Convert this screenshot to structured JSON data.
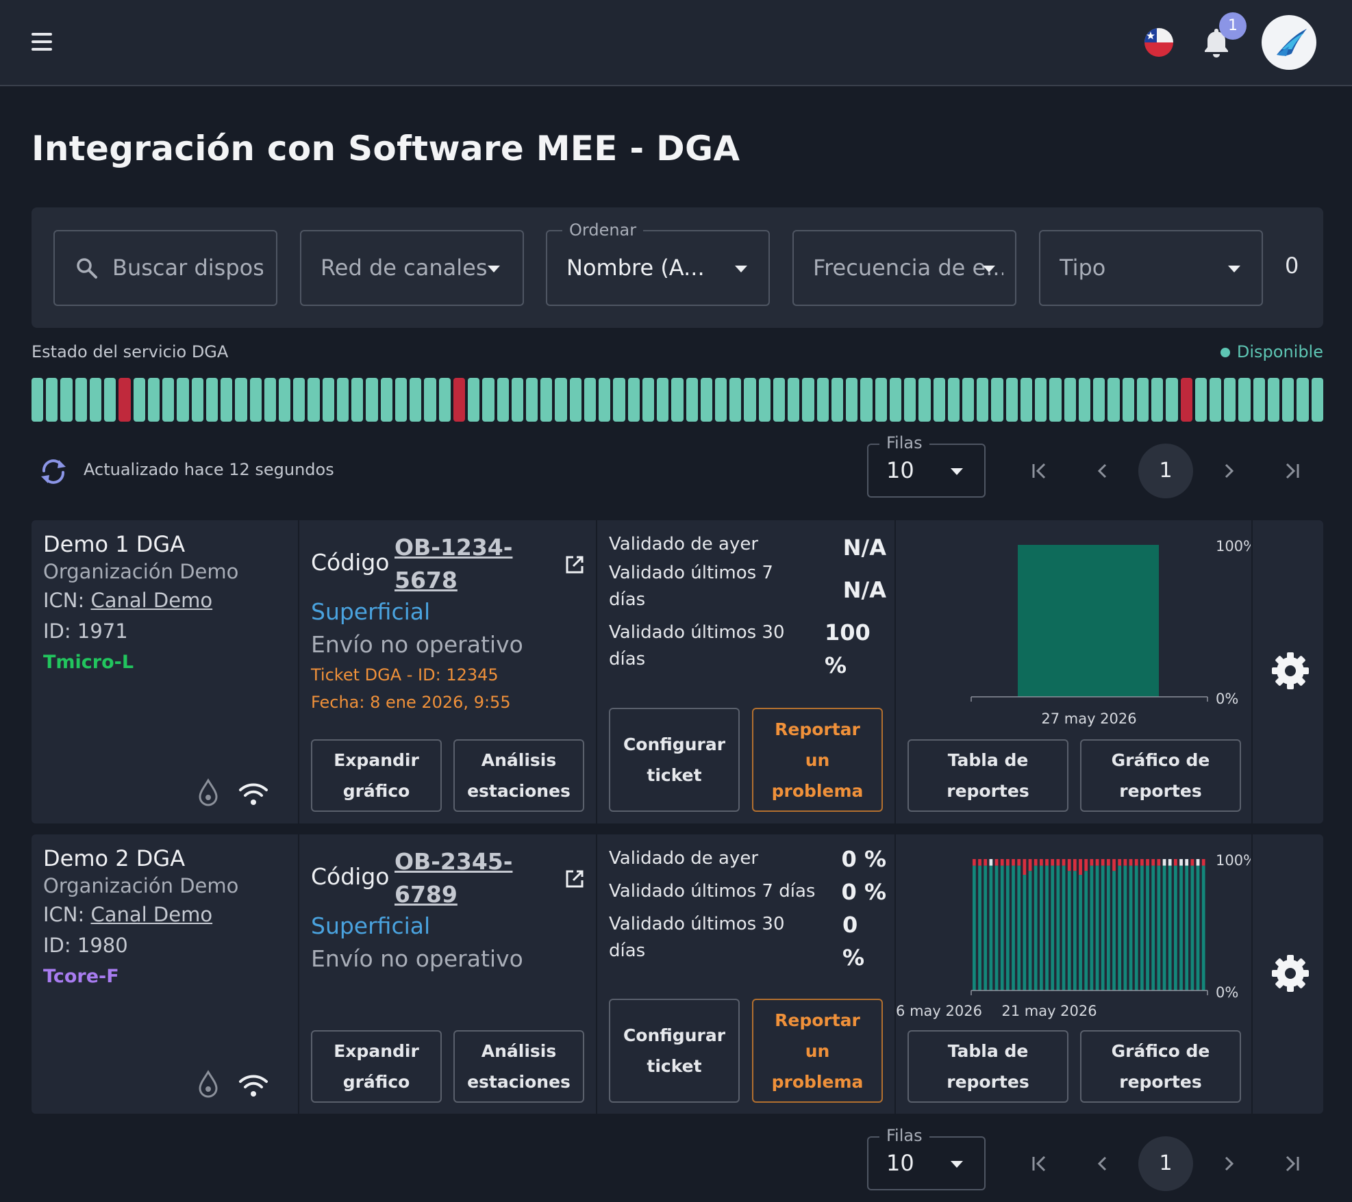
{
  "header": {
    "notification_count": "1",
    "flag": "chile-flag-icon"
  },
  "page": {
    "title": "Integración con Software MEE - DGA"
  },
  "filters": {
    "search_placeholder": "Buscar dispositivo",
    "search_display": "Buscar dispos",
    "network": "Red de canales",
    "sort_label": "Ordenar",
    "sort_value": "Nombre (A...",
    "frequency": "Frecuencia de e...",
    "type": "Tipo",
    "count": "0"
  },
  "service": {
    "label": "Estado del servicio DGA",
    "status": "Disponible",
    "uptime": [
      1,
      1,
      1,
      1,
      1,
      1,
      0,
      1,
      1,
      1,
      1,
      1,
      1,
      1,
      1,
      1,
      1,
      1,
      1,
      1,
      1,
      1,
      1,
      1,
      1,
      1,
      1,
      1,
      1,
      0,
      1,
      1,
      1,
      1,
      1,
      1,
      1,
      1,
      1,
      1,
      1,
      1,
      1,
      1,
      1,
      1,
      1,
      1,
      1,
      1,
      1,
      1,
      1,
      1,
      1,
      1,
      1,
      1,
      1,
      1,
      1,
      1,
      1,
      1,
      1,
      1,
      1,
      1,
      1,
      1,
      1,
      1,
      1,
      1,
      1,
      1,
      1,
      1,
      1,
      0,
      1,
      1,
      1,
      1,
      1,
      1,
      1,
      1,
      1
    ]
  },
  "toolbar": {
    "updated": "Actualizado hace 12 segundos"
  },
  "pagination": {
    "rows_label": "Filas",
    "rows_value": "10",
    "current_page": "1"
  },
  "devices": [
    {
      "name": "Demo 1 DGA",
      "org": "Organización Demo",
      "icn_label": "ICN:",
      "icn_value": "Canal Demo",
      "id": "ID: 1971",
      "type": "Tmicro-L",
      "type_color": "#22c55e",
      "codigo_label": "Código",
      "codigo_l1": "OB-1234-",
      "codigo_l2": "5678",
      "level": "Superficial",
      "envio": "Envío no operativo",
      "ticket": "Ticket DGA - ID: 12345",
      "fecha": "Fecha: 8 ene 2026, 9:55",
      "btn_expand": "Expandir gráfico",
      "btn_analysis": "Análisis estaciones",
      "v1_label": "Validado de ayer",
      "v1_value": "N/A",
      "v2_label": "Validado últimos 7 días",
      "v2_value": "N/A",
      "v3_label": "Validado últimos 30 días",
      "v3_value": "100 %",
      "btn_config": "Configurar ticket",
      "btn_report": "Reportar un problema",
      "btn_table": "Tabla de reportes",
      "btn_chart": "Gráfico de reportes"
    },
    {
      "name": "Demo 2 DGA",
      "org": "Organización Demo",
      "icn_label": "ICN:",
      "icn_value": "Canal Demo",
      "id": "ID: 1980",
      "type": "Tcore-F",
      "type_color": "#a87cf0",
      "codigo_label": "Código",
      "codigo_l1": "OB-2345-",
      "codigo_l2": "6789",
      "level": "Superficial",
      "envio": "Envío no operativo",
      "ticket": "",
      "fecha": "",
      "btn_expand": "Expandir gráfico",
      "btn_analysis": "Análisis estaciones",
      "v1_label": "Validado de ayer",
      "v1_value": "0 %",
      "v2_label": "Validado últimos 7 días",
      "v2_value": "0 %",
      "v3_label": "Validado últimos 30 días",
      "v3_value": "0 %",
      "btn_config": "Configurar ticket",
      "btn_report": "Reportar un problema",
      "btn_table": "Tabla de reportes",
      "btn_chart": "Gráfico de reportes"
    }
  ],
  "chart_data": [
    {
      "type": "bar",
      "categories": [
        "27 may 2026"
      ],
      "values": [
        100
      ],
      "ylim": [
        0,
        100
      ],
      "ytick_labels": [
        "100%",
        "0%"
      ],
      "colors": {
        "ok": "#0e6b5a"
      }
    },
    {
      "type": "bar",
      "stacked": true,
      "x_tick_labels": [
        "6 may 2026",
        "21 may 2026"
      ],
      "ylim": [
        0,
        100
      ],
      "ytick_labels": [
        "100%",
        "0%"
      ],
      "series": [
        {
          "values": [
            95,
            95,
            95,
            95,
            95,
            95,
            95,
            95,
            95,
            88,
            91,
            95,
            95,
            95,
            95,
            95,
            95,
            91,
            91,
            88,
            91,
            95,
            95,
            95,
            95,
            91,
            95,
            95,
            95,
            95,
            95,
            95,
            95,
            95,
            95,
            95,
            95,
            95,
            95,
            95,
            95,
            95
          ]
        },
        {
          "values": [
            5,
            5,
            5,
            0,
            5,
            5,
            5,
            5,
            5,
            12,
            9,
            5,
            5,
            5,
            5,
            5,
            5,
            9,
            9,
            12,
            9,
            5,
            5,
            5,
            5,
            9,
            5,
            5,
            5,
            5,
            5,
            5,
            5,
            5,
            0,
            0,
            5,
            0,
            0,
            5,
            0,
            5
          ]
        },
        {
          "values": [
            0,
            0,
            0,
            5,
            0,
            0,
            0,
            0,
            0,
            0,
            0,
            0,
            0,
            0,
            0,
            0,
            0,
            0,
            0,
            0,
            0,
            0,
            0,
            0,
            0,
            0,
            0,
            0,
            0,
            0,
            0,
            0,
            0,
            0,
            5,
            5,
            0,
            5,
            5,
            0,
            5,
            0
          ]
        }
      ],
      "colors": {
        "ok": "#13877a",
        "error": "#d92f3f",
        "missing": "#e6e8ec"
      }
    }
  ]
}
